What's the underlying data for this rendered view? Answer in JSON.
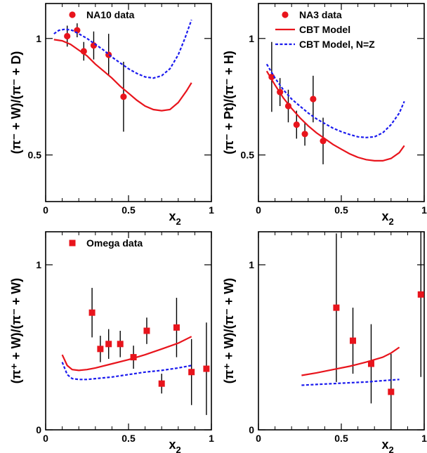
{
  "colors": {
    "data": "#e8141c",
    "model": "#e8141c",
    "model_nz": "#1a1aee",
    "frame": "#000000"
  },
  "chart_data": [
    {
      "type": "scatter",
      "xlabel": "x",
      "xlabel_sub": "2",
      "ylabel": "(π⁻ + W)/(π⁻ + D)",
      "xlim": [
        0,
        1
      ],
      "ylim": [
        0.3,
        1.15
      ],
      "x_ticks": [
        {
          "v": 0,
          "t": "0"
        },
        {
          "v": 0.5,
          "t": "0.5"
        },
        {
          "v": 1,
          "t": "1"
        }
      ],
      "y_ticks": [
        {
          "v": 0.5,
          "t": "0.5"
        },
        {
          "v": 1,
          "t": "1"
        }
      ],
      "legend": [
        {
          "label": "NA10 data",
          "marker": "circle"
        }
      ],
      "series": [
        {
          "name": "NA10 data",
          "kind": "points",
          "marker": "circle",
          "x": [
            0.13,
            0.19,
            0.23,
            0.29,
            0.38,
            0.47
          ],
          "y": [
            1.01,
            1.035,
            0.945,
            0.97,
            0.93,
            0.75
          ],
          "err": [
            0.045,
            0.03,
            0.04,
            0.06,
            0.09,
            0.15
          ]
        },
        {
          "name": "CBT Model",
          "kind": "line",
          "dash": "solid",
          "x": [
            0.05,
            0.1,
            0.15,
            0.2,
            0.25,
            0.3,
            0.35,
            0.4,
            0.45,
            0.5,
            0.55,
            0.6,
            0.65,
            0.7,
            0.75,
            0.8,
            0.85,
            0.88
          ],
          "y": [
            0.995,
            0.99,
            0.975,
            0.95,
            0.925,
            0.89,
            0.86,
            0.83,
            0.795,
            0.765,
            0.735,
            0.71,
            0.695,
            0.69,
            0.695,
            0.725,
            0.775,
            0.81
          ]
        },
        {
          "name": "CBT Model, N=Z",
          "kind": "line",
          "dash": "dotted",
          "x": [
            0.05,
            0.08,
            0.12,
            0.16,
            0.2,
            0.25,
            0.3,
            0.35,
            0.4,
            0.45,
            0.5,
            0.55,
            0.6,
            0.65,
            0.7,
            0.75,
            0.8,
            0.84,
            0.88
          ],
          "y": [
            1.02,
            1.035,
            1.04,
            1.035,
            1.02,
            1.0,
            0.975,
            0.95,
            0.92,
            0.895,
            0.87,
            0.85,
            0.835,
            0.83,
            0.84,
            0.87,
            0.93,
            1.0,
            1.08
          ]
        }
      ]
    },
    {
      "type": "scatter",
      "xlabel": "x",
      "xlabel_sub": "2",
      "ylabel": "(π⁻ + Pt)/(π⁻ + H)",
      "xlim": [
        0,
        1
      ],
      "ylim": [
        0.3,
        1.15
      ],
      "x_ticks": [
        {
          "v": 0,
          "t": "0"
        },
        {
          "v": 0.5,
          "t": "0.5"
        },
        {
          "v": 1,
          "t": "1"
        }
      ],
      "y_ticks": [
        {
          "v": 0.5,
          "t": "0.5"
        },
        {
          "v": 1,
          "t": "1"
        }
      ],
      "legend": [
        {
          "label": "NA3 data",
          "marker": "circle"
        },
        {
          "label": "CBT Model",
          "marker": "solid"
        },
        {
          "label": "CBT Model, N=Z",
          "marker": "dotted"
        }
      ],
      "series": [
        {
          "name": "NA3 data",
          "kind": "points",
          "marker": "circle",
          "x": [
            0.08,
            0.13,
            0.18,
            0.23,
            0.28,
            0.33,
            0.39
          ],
          "y": [
            0.835,
            0.77,
            0.71,
            0.63,
            0.59,
            0.74,
            0.56
          ],
          "err": [
            0.15,
            0.06,
            0.07,
            0.06,
            0.05,
            0.1,
            0.1
          ]
        },
        {
          "name": "CBT Model",
          "kind": "line",
          "dash": "solid",
          "x": [
            0.05,
            0.1,
            0.15,
            0.2,
            0.25,
            0.3,
            0.35,
            0.4,
            0.45,
            0.5,
            0.55,
            0.6,
            0.65,
            0.7,
            0.75,
            0.8,
            0.85,
            0.88
          ],
          "y": [
            0.86,
            0.8,
            0.745,
            0.7,
            0.66,
            0.625,
            0.595,
            0.57,
            0.545,
            0.525,
            0.505,
            0.49,
            0.48,
            0.475,
            0.475,
            0.485,
            0.51,
            0.54
          ]
        },
        {
          "name": "CBT Model, N=Z",
          "kind": "line",
          "dash": "dotted",
          "x": [
            0.05,
            0.1,
            0.15,
            0.2,
            0.25,
            0.3,
            0.35,
            0.4,
            0.45,
            0.5,
            0.55,
            0.6,
            0.65,
            0.7,
            0.75,
            0.8,
            0.85,
            0.88
          ],
          "y": [
            0.89,
            0.83,
            0.78,
            0.74,
            0.71,
            0.68,
            0.655,
            0.635,
            0.615,
            0.6,
            0.588,
            0.578,
            0.575,
            0.578,
            0.595,
            0.63,
            0.68,
            0.73
          ]
        }
      ]
    },
    {
      "type": "scatter",
      "xlabel": "x",
      "xlabel_sub": "2",
      "ylabel": "(π⁺ + W)/(π⁻ + W)",
      "xlim": [
        0,
        1
      ],
      "ylim": [
        0,
        1.2
      ],
      "x_ticks": [
        {
          "v": 0,
          "t": "0"
        },
        {
          "v": 0.5,
          "t": "0.5"
        },
        {
          "v": 1,
          "t": "1"
        }
      ],
      "y_ticks": [
        {
          "v": 0,
          "t": "0"
        },
        {
          "v": 1,
          "t": "1"
        }
      ],
      "legend": [
        {
          "label": "Omega data",
          "marker": "square"
        }
      ],
      "series": [
        {
          "name": "Omega data",
          "kind": "points",
          "marker": "square",
          "x": [
            0.28,
            0.33,
            0.38,
            0.45,
            0.53,
            0.61,
            0.7,
            0.79,
            0.88,
            0.97
          ],
          "y": [
            0.71,
            0.49,
            0.52,
            0.52,
            0.44,
            0.6,
            0.28,
            0.62,
            0.35,
            0.37
          ],
          "err": [
            0.15,
            0.08,
            0.09,
            0.08,
            0.07,
            0.08,
            0.06,
            0.18,
            0.2,
            0.28
          ]
        },
        {
          "name": "CBT Model",
          "kind": "line",
          "dash": "solid",
          "x": [
            0.1,
            0.13,
            0.16,
            0.2,
            0.25,
            0.3,
            0.4,
            0.5,
            0.6,
            0.7,
            0.8,
            0.88
          ],
          "y": [
            0.455,
            0.39,
            0.365,
            0.36,
            0.365,
            0.375,
            0.4,
            0.425,
            0.455,
            0.49,
            0.525,
            0.565
          ]
        },
        {
          "name": "CBT Model, N=Z",
          "kind": "line",
          "dash": "dotted",
          "x": [
            0.1,
            0.13,
            0.16,
            0.2,
            0.25,
            0.3,
            0.4,
            0.5,
            0.6,
            0.7,
            0.8,
            0.88
          ],
          "y": [
            0.41,
            0.335,
            0.31,
            0.305,
            0.305,
            0.31,
            0.32,
            0.335,
            0.35,
            0.36,
            0.375,
            0.39
          ]
        }
      ]
    },
    {
      "type": "scatter",
      "xlabel": "x",
      "xlabel_sub": "2",
      "ylabel": "(π⁺ + W)/(π⁻ + W)",
      "xlim": [
        0,
        1
      ],
      "ylim": [
        0,
        1.2
      ],
      "x_ticks": [
        {
          "v": 0,
          "t": "0"
        },
        {
          "v": 0.5,
          "t": "0.5"
        },
        {
          "v": 1,
          "t": "1"
        }
      ],
      "y_ticks": [
        {
          "v": 0,
          "t": "0"
        },
        {
          "v": 1,
          "t": "1"
        }
      ],
      "legend": [],
      "series": [
        {
          "name": "data",
          "kind": "points",
          "marker": "square",
          "x": [
            0.47,
            0.57,
            0.68,
            0.8,
            0.98
          ],
          "y": [
            0.74,
            0.54,
            0.4,
            0.23,
            0.82
          ],
          "err": [
            0.45,
            0.2,
            0.24,
            0.23,
            0.5
          ]
        },
        {
          "name": "CBT Model",
          "kind": "line",
          "dash": "solid",
          "x": [
            0.26,
            0.35,
            0.45,
            0.55,
            0.65,
            0.75,
            0.8,
            0.85
          ],
          "y": [
            0.33,
            0.345,
            0.365,
            0.385,
            0.41,
            0.44,
            0.465,
            0.5
          ]
        },
        {
          "name": "CBT Model, N=Z",
          "kind": "line",
          "dash": "dotted",
          "x": [
            0.26,
            0.35,
            0.45,
            0.55,
            0.65,
            0.75,
            0.85
          ],
          "y": [
            0.27,
            0.275,
            0.28,
            0.285,
            0.29,
            0.298,
            0.305
          ]
        }
      ]
    }
  ]
}
